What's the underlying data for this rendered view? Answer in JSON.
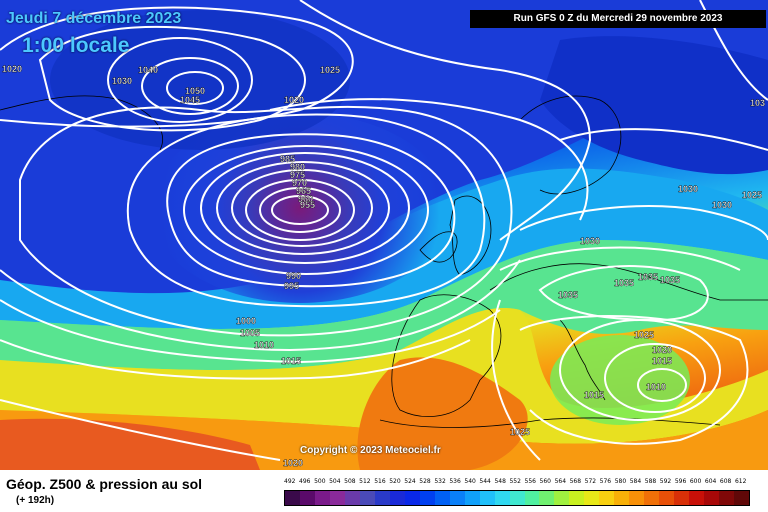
{
  "title": {
    "date": "Jeudi 7 décembre 2023",
    "time": "1:00 locale"
  },
  "run": "Run GFS 0 Z du Mercredi 29 novembre 2023",
  "copyright": "Copyright © 2023 Meteociel.fr",
  "legend": {
    "title": "Géop. Z500 & pression au sol",
    "subtitle": "(+ 192h)",
    "ticks": [
      "492",
      "496",
      "500",
      "504",
      "508",
      "512",
      "516",
      "520",
      "524",
      "528",
      "532",
      "536",
      "540",
      "544",
      "548",
      "552",
      "556",
      "560",
      "564",
      "568",
      "572",
      "576",
      "580",
      "584",
      "588",
      "592",
      "596",
      "600",
      "604",
      "608",
      "612"
    ],
    "colors": [
      "#3a0a4a",
      "#5a0a6a",
      "#7a1a8a",
      "#8a2a9a",
      "#6a3aaa",
      "#4a4ab8",
      "#2a3ac8",
      "#1a2ad8",
      "#0a28e8",
      "#0040f0",
      "#0060f4",
      "#0a80f8",
      "#10a0fa",
      "#20c0fa",
      "#30d8f0",
      "#40e8d0",
      "#50f0a0",
      "#70f070",
      "#a0f040",
      "#c8f020",
      "#e8e818",
      "#f8d010",
      "#f8b008",
      "#f89008",
      "#f07008",
      "#e85008",
      "#d83008",
      "#c81008",
      "#a80808",
      "#800808",
      "#600808"
    ]
  },
  "isobars": [
    {
      "label": "1020",
      "pos": "nw-edge"
    },
    {
      "label": "1030",
      "pos": "greenland-w"
    },
    {
      "label": "1040",
      "pos": "greenland-c"
    },
    {
      "label": "1050",
      "pos": "greenland-core"
    },
    {
      "label": "1045",
      "pos": "greenland-core2"
    },
    {
      "label": "1025",
      "pos": "greenland-e"
    },
    {
      "label": "1020",
      "pos": "greenland-s"
    },
    {
      "label": "985",
      "pos": "low-n"
    },
    {
      "label": "980",
      "pos": "low-n2"
    },
    {
      "label": "975",
      "pos": "low-n3"
    },
    {
      "label": "970",
      "pos": "low-n4"
    },
    {
      "label": "965",
      "pos": "low-n5"
    },
    {
      "label": "960",
      "pos": "low-n6"
    },
    {
      "label": "955",
      "pos": "low-n7"
    },
    {
      "label": "990",
      "pos": "low-s"
    },
    {
      "label": "995",
      "pos": "low-s2"
    },
    {
      "label": "1000",
      "pos": "atl-1"
    },
    {
      "label": "1005",
      "pos": "atl-2"
    },
    {
      "label": "1010",
      "pos": "atl-3"
    },
    {
      "label": "1015",
      "pos": "atl-4"
    },
    {
      "label": "1020",
      "pos": "azores"
    },
    {
      "label": "1030",
      "pos": "scand"
    },
    {
      "label": "1030",
      "pos": "russia"
    },
    {
      "label": "1025",
      "pos": "russia-e"
    },
    {
      "label": "1030",
      "pos": "germany"
    },
    {
      "label": "1035",
      "pos": "alps"
    },
    {
      "label": "1035",
      "pos": "balkans"
    },
    {
      "label": "1035",
      "pos": "balkans2"
    },
    {
      "label": "1035",
      "pos": "balkans3"
    },
    {
      "label": "1025",
      "pos": "med-1"
    },
    {
      "label": "1020",
      "pos": "med-2"
    },
    {
      "label": "1015",
      "pos": "med-3"
    },
    {
      "label": "1010",
      "pos": "med-low"
    },
    {
      "label": "1015",
      "pos": "med-4"
    },
    {
      "label": "1025",
      "pos": "africa"
    },
    {
      "label": "103",
      "pos": "ne-edge"
    }
  ]
}
